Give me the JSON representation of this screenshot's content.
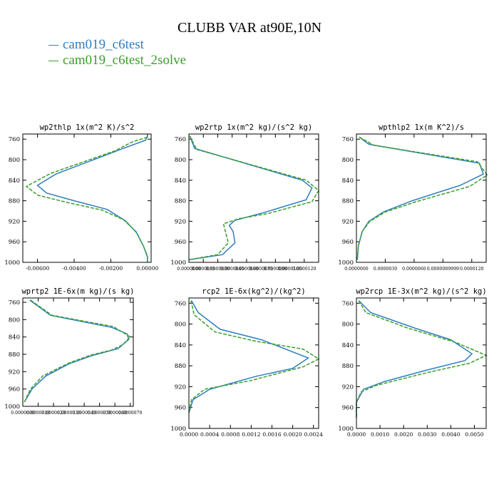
{
  "title": "CLUBB VAR at90E,10N",
  "legend": [
    {
      "label": "cam019_c6test",
      "color": "#2e7ebf"
    },
    {
      "label": "cam019_c6test_2solve",
      "color": "#3a9e2b"
    }
  ],
  "chart_data": [
    {
      "type": "line",
      "title": "wp2thlp  1x(m^2 K)/s^2",
      "ylim": [
        1000,
        750
      ],
      "yticks": [
        760,
        800,
        840,
        880,
        920,
        960,
        1000
      ],
      "xlim": [
        -0.0068,
        0.0002
      ],
      "xticks": [
        -0.006,
        -0.004,
        -0.002,
        0.0
      ],
      "xtick_labels": [
        "-0.00600",
        "-0.00400",
        "-0.00200",
        "0.00000"
      ],
      "series": [
        {
          "name": "cam019_c6test",
          "points": [
            [
              0.0,
              754
            ],
            [
              -0.0001,
              762
            ],
            [
              -0.0014,
              779
            ],
            [
              -0.005,
              828
            ],
            [
              -0.006,
              850
            ],
            [
              -0.0055,
              865
            ],
            [
              -0.004,
              880
            ],
            [
              -0.0022,
              897
            ],
            [
              -0.0012,
              919
            ],
            [
              -0.0006,
              942
            ],
            [
              -0.0002,
              970
            ],
            [
              0.0,
              990
            ],
            [
              0.0,
              1000
            ]
          ]
        },
        {
          "name": "cam019_c6test_2solve",
          "points": [
            [
              0.0,
              756
            ],
            [
              -0.0008,
              765
            ],
            [
              -0.0018,
              783
            ],
            [
              -0.0053,
              827
            ],
            [
              -0.0066,
              852
            ],
            [
              -0.006,
              869
            ],
            [
              -0.0043,
              884
            ],
            [
              -0.0025,
              898
            ],
            [
              -0.0013,
              917
            ],
            [
              -0.0006,
              941
            ],
            [
              -0.0002,
              970
            ],
            [
              0.0,
              988
            ],
            [
              0.0,
              1000
            ]
          ]
        }
      ]
    },
    {
      "type": "line",
      "title": "wp2rtp  1x(m^2 kg)/(s^2 kg)",
      "ylim": [
        1000,
        750
      ],
      "yticks": [
        760,
        800,
        840,
        880,
        920,
        960,
        1000
      ],
      "xlim": [
        0.0,
        1.35e-05
      ],
      "xticks": [
        0.0,
        1.5e-06,
        3e-06,
        4.5e-06,
        6e-06,
        7.5e-06,
        9e-06,
        1.05e-05,
        1.2e-05
      ],
      "xtick_labels": [
        "0.0000000",
        "0.0000015",
        "0.0000030",
        "0.0000045",
        "0.0000060",
        "0.0000075",
        "0.0000090",
        "0.0000105",
        "0.0000120"
      ],
      "series": [
        {
          "name": "cam019_c6test",
          "points": [
            [
              1e-07,
              754
            ],
            [
              6e-07,
              778
            ],
            [
              1.18e-05,
              840
            ],
            [
              1.28e-05,
              855
            ],
            [
              1.22e-05,
              878
            ],
            [
              7.8e-06,
              903
            ],
            [
              4.8e-06,
              918
            ],
            [
              4.2e-06,
              928
            ],
            [
              4.6e-06,
              940
            ],
            [
              4.8e-06,
              962
            ],
            [
              3.5e-06,
              985
            ],
            [
              0.0,
              995
            ]
          ]
        },
        {
          "name": "cam019_c6test_2solve",
          "points": [
            [
              1e-07,
              754
            ],
            [
              8e-07,
              780
            ],
            [
              1.22e-05,
              840
            ],
            [
              1.35e-05,
              860
            ],
            [
              1.28e-05,
              882
            ],
            [
              8.2e-06,
              905
            ],
            [
              5.2e-06,
              915
            ],
            [
              3.6e-06,
              925
            ],
            [
              3.8e-06,
              940
            ],
            [
              4.1e-06,
              962
            ],
            [
              3e-06,
              985
            ],
            [
              0.0,
              995
            ]
          ]
        }
      ]
    },
    {
      "type": "line",
      "title": "wpthlp2  1x(m K^2)/s",
      "ylim": [
        1000,
        750
      ],
      "yticks": [
        760,
        800,
        840,
        880,
        920,
        960,
        1000
      ],
      "xlim": [
        0.0,
        1.35e-05
      ],
      "xticks": [
        0.0,
        3e-06,
        6e-06,
        8.9999e-06,
        1.2e-05
      ],
      "xtick_labels": [
        "0.0000000",
        "0.0000030",
        "0.0000060",
        "0.0000089999",
        "0.0000120"
      ],
      "series": [
        {
          "name": "cam019_c6test",
          "points": [
            [
              3e-07,
              756
            ],
            [
              1.3e-06,
              770
            ],
            [
              1.28e-05,
              807
            ],
            [
              1.32e-05,
              828
            ],
            [
              1.08e-05,
              850
            ],
            [
              5.8e-06,
              880
            ],
            [
              2.8e-06,
              902
            ],
            [
              1.3e-06,
              920
            ],
            [
              6e-07,
              940
            ],
            [
              2e-07,
              968
            ],
            [
              1e-07,
              995
            ]
          ]
        },
        {
          "name": "cam019_c6test_2solve",
          "points": [
            [
              3e-07,
              756
            ],
            [
              1.8e-06,
              772
            ],
            [
              1.26e-05,
              804
            ],
            [
              1.36e-05,
              830
            ],
            [
              1.18e-05,
              852
            ],
            [
              6.2e-06,
              882
            ],
            [
              3e-06,
              902
            ],
            [
              1.4e-06,
              920
            ],
            [
              6e-07,
              940
            ],
            [
              2e-07,
              968
            ],
            [
              1e-07,
              995
            ]
          ]
        }
      ]
    },
    {
      "type": "line",
      "title": "wprtp2  1E-6x(m kg)/(s kg)",
      "ylim": [
        1000,
        750
      ],
      "yticks": [
        760,
        800,
        840,
        880,
        920,
        960,
        1000
      ],
      "xlim": [
        0.0,
        7.2e-06
      ],
      "xticks": [
        0.0,
        1e-06,
        2e-06,
        3e-06,
        4e-06,
        5e-06,
        6e-06,
        7e-06
      ],
      "xtick_labels": [
        "0.0000000",
        "0.0000010",
        "0.0000020",
        "0.0000030",
        "0.0000040",
        "0.0000050",
        "0.0000060",
        "0.0000070"
      ],
      "series": [
        {
          "name": "cam019_c6test",
          "points": [
            [
              4.5e-07,
              755
            ],
            [
              1.8e-06,
              790
            ],
            [
              5.8e-06,
              818
            ],
            [
              6.8e-06,
              833
            ],
            [
              6.9e-06,
              846
            ],
            [
              6.2e-06,
              867
            ],
            [
              4.5e-06,
              883
            ],
            [
              3e-06,
              902
            ],
            [
              1.5e-06,
              930
            ],
            [
              6e-07,
              960
            ],
            [
              1e-07,
              990
            ]
          ]
        },
        {
          "name": "cam019_c6test_2solve",
          "points": [
            [
              5e-07,
              755
            ],
            [
              1.9e-06,
              790
            ],
            [
              5.9e-06,
              816
            ],
            [
              7e-06,
              840
            ],
            [
              6.5e-06,
              858
            ],
            [
              5.8e-06,
              870
            ],
            [
              4.4e-06,
              882
            ],
            [
              3e-06,
              900
            ],
            [
              1.3e-06,
              930
            ],
            [
              5e-07,
              960
            ],
            [
              1e-07,
              990
            ]
          ]
        }
      ]
    },
    {
      "type": "line",
      "title": "rcp2  1E-6x(kg^2)/(kg^2)",
      "ylim": [
        1000,
        750
      ],
      "yticks": [
        760,
        800,
        840,
        880,
        920,
        960,
        1000
      ],
      "xlim": [
        0.0,
        0.0025
      ],
      "xticks": [
        0.0,
        0.0004,
        0.0008,
        0.0012,
        0.0016,
        0.002,
        0.0024
      ],
      "xtick_labels": [
        "0.0000",
        "0.0004",
        "0.0008",
        "0.0012",
        "0.0016",
        "0.0020",
        "0.0024"
      ],
      "series": [
        {
          "name": "cam019_c6test",
          "points": [
            [
              5e-05,
              755
            ],
            [
              0.00018,
              778
            ],
            [
              0.0006,
              810
            ],
            [
              0.0014,
              830
            ],
            [
              0.0023,
              865
            ],
            [
              0.002,
              885
            ],
            [
              0.0013,
              900
            ],
            [
              0.0004,
              925
            ],
            [
              8e-05,
              945
            ],
            [
              0.0,
              970
            ]
          ]
        },
        {
          "name": "cam019_c6test_2solve",
          "points": [
            [
              4e-05,
              755
            ],
            [
              0.0001,
              782
            ],
            [
              0.0005,
              815
            ],
            [
              0.0013,
              833
            ],
            [
              0.0022,
              848
            ],
            [
              0.0025,
              867
            ],
            [
              0.0022,
              882
            ],
            [
              0.0012,
              908
            ],
            [
              0.0003,
              925
            ],
            [
              5e-05,
              945
            ],
            [
              0.0,
              970
            ]
          ]
        }
      ]
    },
    {
      "type": "line",
      "title": "wp2rcp  1E-3x(m^2 kg)/(s^2 kg)",
      "ylim": [
        1000,
        750
      ],
      "yticks": [
        760,
        800,
        840,
        880,
        920,
        960,
        1000
      ],
      "xlim": [
        0.0,
        0.0055
      ],
      "xticks": [
        0.0,
        0.001,
        0.002,
        0.003,
        0.004,
        0.005
      ],
      "xtick_labels": [
        "0.0000",
        "0.0010",
        "0.0020",
        "0.0030",
        "0.0040",
        "0.0050"
      ],
      "series": [
        {
          "name": "cam019_c6test",
          "points": [
            [
              0.0001,
              755
            ],
            [
              0.0006,
              778
            ],
            [
              0.0025,
              808
            ],
            [
              0.004,
              830
            ],
            [
              0.0049,
              857
            ],
            [
              0.0046,
              870
            ],
            [
              0.003,
              888
            ],
            [
              0.0012,
              910
            ],
            [
              0.0003,
              925
            ],
            [
              0.0,
              950
            ],
            [
              0.0,
              980
            ]
          ]
        },
        {
          "name": "cam019_c6test_2solve",
          "points": [
            [
              0.0001,
              755
            ],
            [
              0.0004,
              778
            ],
            [
              0.0022,
              808
            ],
            [
              0.0042,
              835
            ],
            [
              0.0055,
              860
            ],
            [
              0.0048,
              875
            ],
            [
              0.003,
              893
            ],
            [
              0.0008,
              918
            ],
            [
              0.0002,
              930
            ],
            [
              0.0,
              950
            ],
            [
              0.0,
              980
            ]
          ]
        }
      ]
    }
  ]
}
